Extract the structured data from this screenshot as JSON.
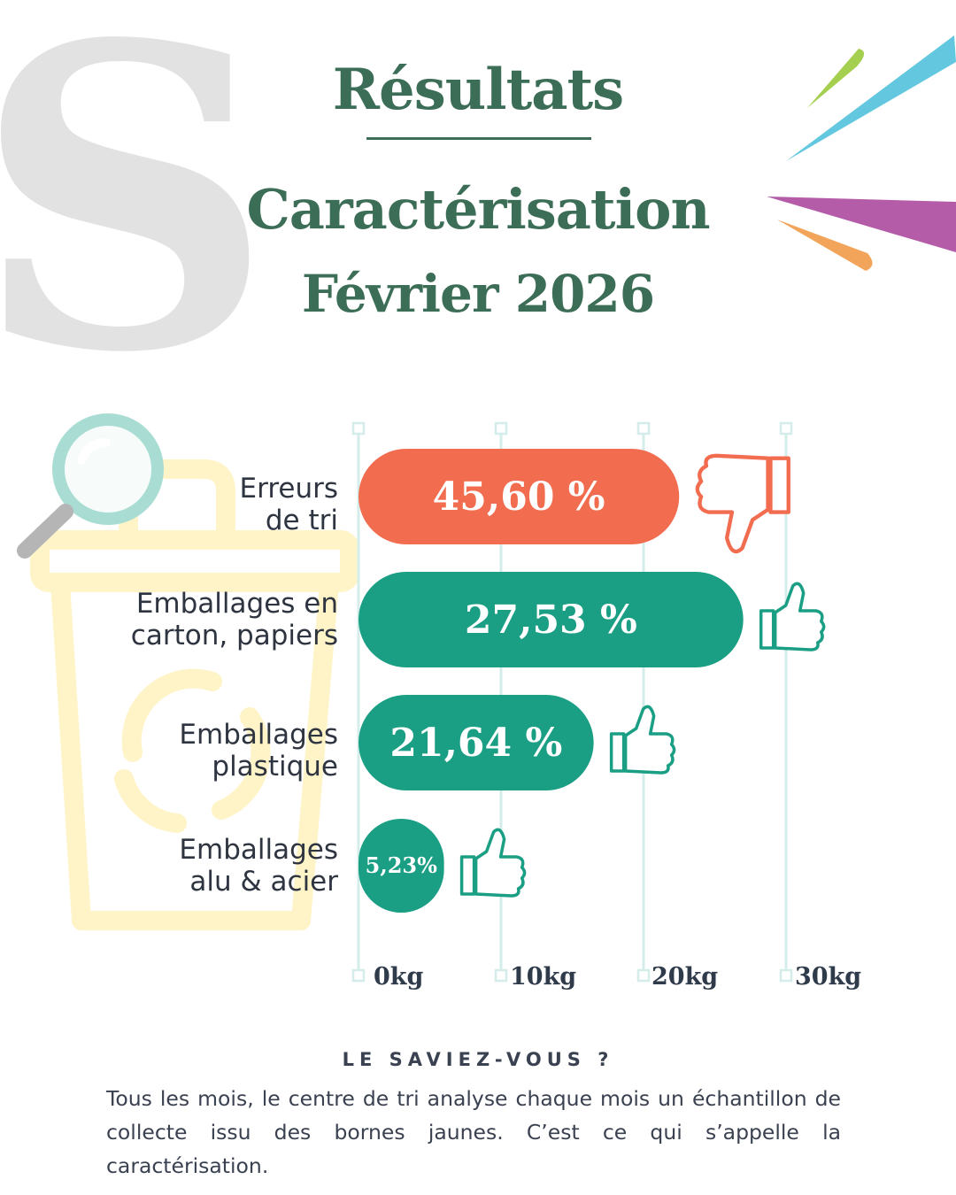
{
  "header": {
    "title": "Résultats",
    "subtitle_line1": "Caractérisation",
    "subtitle_line2": "Février 2026"
  },
  "colors": {
    "title_green": "#3c6e57",
    "bar_error": "#f26c4f",
    "bar_good": "#1a9e84",
    "grid": "#d4ecea",
    "watermark": "#e2e2e2",
    "bin_yellow": "#fff4c8",
    "confetti": [
      "#a4cf4f",
      "#63c8df",
      "#b45ca8",
      "#f2a55a"
    ]
  },
  "chart_data": {
    "type": "bar",
    "orientation": "horizontal",
    "categories": [
      "Erreurs\nde tri",
      "Emballages en\ncarton, papiers",
      "Emballages\nplastique",
      "Emballages\nalu & acier"
    ],
    "values_kg": [
      22.5,
      27,
      16.5,
      6
    ],
    "data_labels": [
      "45,60 %",
      "27,53 %",
      "21,64 %",
      "5,23%"
    ],
    "series": [
      {
        "values_percent": [
          45.6,
          27.53,
          21.64,
          5.23
        ]
      }
    ],
    "x_ticks": [
      "0kg",
      "10kg",
      "20kg",
      "30kg"
    ],
    "xlim": [
      0,
      30
    ],
    "grid": true,
    "bar_icons": [
      "thumbs-down-icon",
      "thumbs-up-icon",
      "thumbs-up-icon",
      "thumbs-up-icon"
    ],
    "bar_color_keys": [
      "bar_error",
      "bar_good",
      "bar_good",
      "bar_good"
    ]
  },
  "fact": {
    "title": "LE SAVIEZ-VOUS ?",
    "body": "Tous les mois, le centre de tri analyse chaque mois un échantillon de collecte issu des bornes jaunes. C’est ce qui s’appelle la caractérisation."
  }
}
